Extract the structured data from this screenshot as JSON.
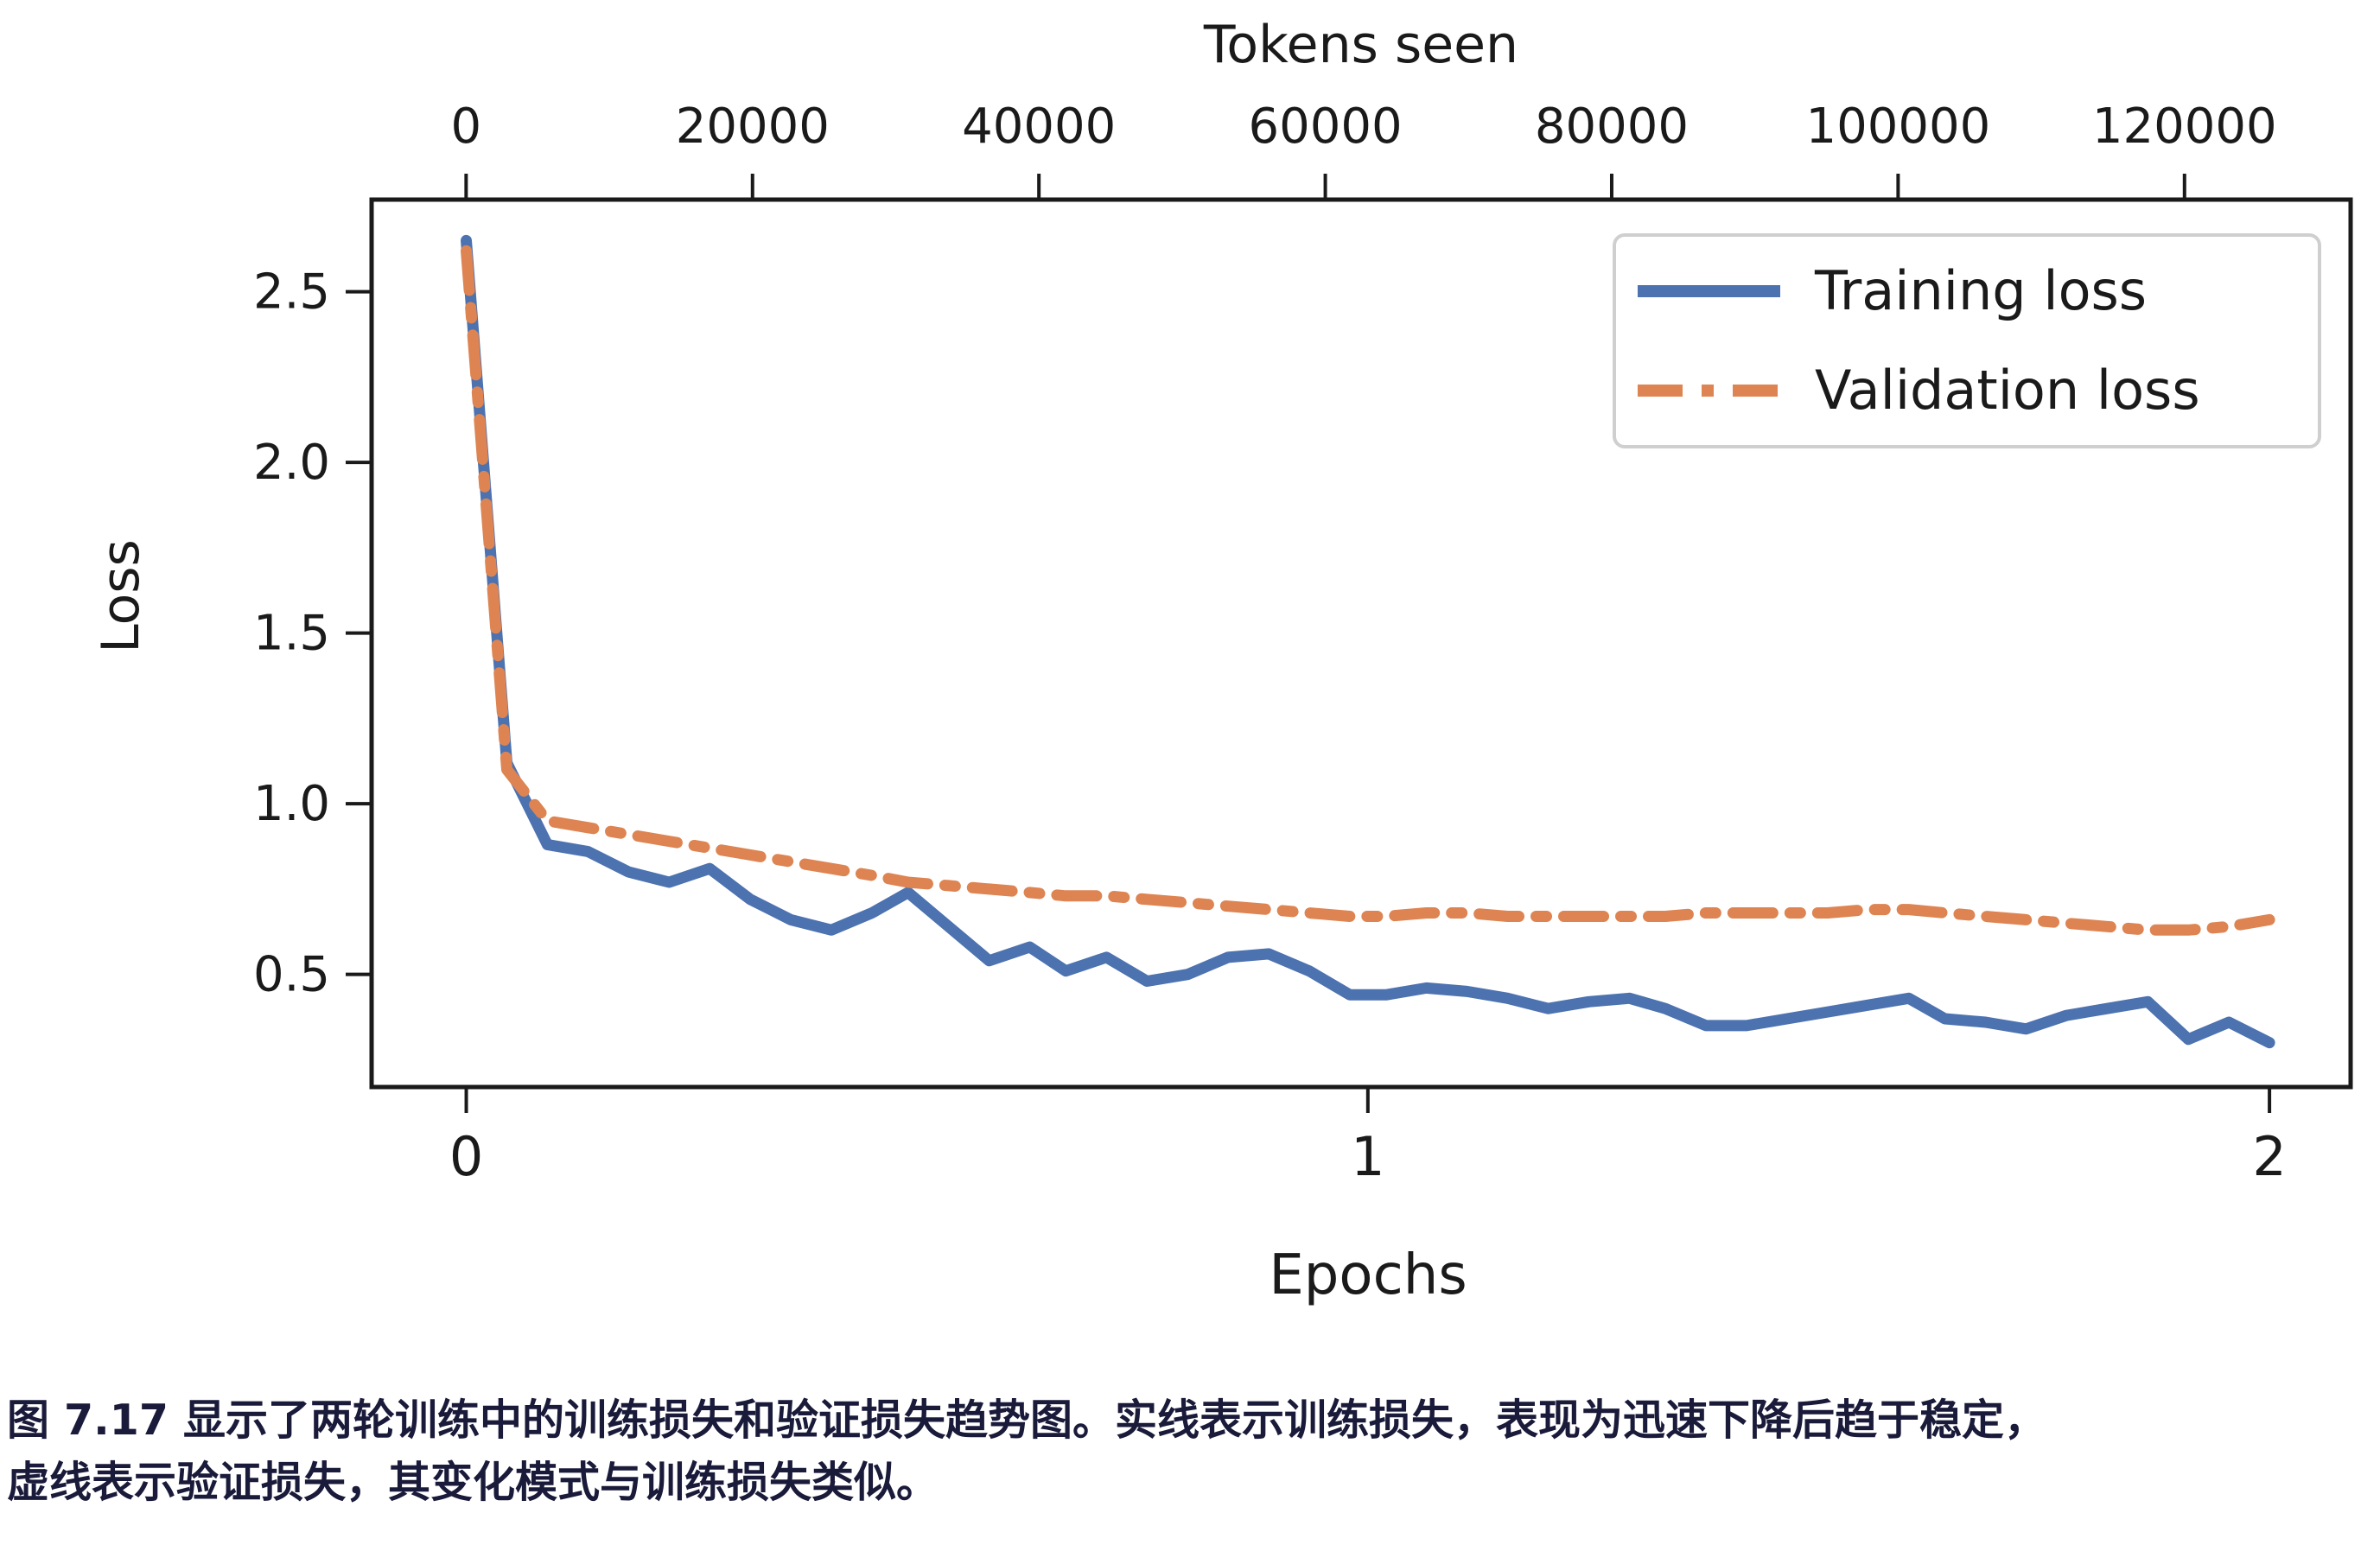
{
  "figure": {
    "caption": {
      "line1": "图 7.17 显示了两轮训练中的训练损失和验证损失趋势图。实线表示训练损失，表现为迅速下降后趋于稳定，",
      "line2": "虚线表示验证损失，其变化模式与训练损失类似。"
    }
  },
  "chart_data": {
    "type": "line",
    "title": "",
    "xlabel": "Epochs",
    "ylabel": "Loss",
    "top_axis_label": "Tokens seen",
    "grid": false,
    "legend_position": "upper right",
    "colors": {
      "training": "#4c72b0",
      "validation": "#dd8452",
      "spine": "#1a1a1a",
      "legend_border": "#cfcfcf"
    },
    "x_axis_bottom": {
      "label": "Epochs",
      "tick_values": [
        0,
        1,
        2
      ],
      "tick_labels": [
        "0",
        "1",
        "2"
      ],
      "min": -0.105,
      "max": 2.09
    },
    "x_axis_top": {
      "label": "Tokens seen",
      "tick_values": [
        0,
        20000,
        40000,
        60000,
        80000,
        100000,
        120000
      ],
      "tick_labels": [
        "0",
        "20000",
        "40000",
        "60000",
        "80000",
        "100000",
        "120000"
      ],
      "min": -6600,
      "max": 131600
    },
    "y_axis": {
      "label": "Loss",
      "tick_values": [
        2.5,
        2.0,
        1.5,
        1.0,
        0.5
      ],
      "tick_labels": [
        "2.5",
        "2.0",
        "1.5",
        "1.0",
        "0.5"
      ],
      "min": 0.17,
      "max": 2.77
    },
    "x_epochs": [
      0.0,
      0.045,
      0.09,
      0.135,
      0.18,
      0.225,
      0.27,
      0.315,
      0.36,
      0.405,
      0.45,
      0.49,
      0.535,
      0.58,
      0.625,
      0.665,
      0.71,
      0.755,
      0.8,
      0.845,
      0.89,
      0.935,
      0.98,
      1.02,
      1.065,
      1.11,
      1.155,
      1.2,
      1.245,
      1.29,
      1.33,
      1.375,
      1.42,
      1.465,
      1.51,
      1.555,
      1.6,
      1.64,
      1.685,
      1.73,
      1.775,
      1.82,
      1.865,
      1.91,
      1.955,
      2.0
    ],
    "series": [
      {
        "name": "Training loss",
        "style": "solid",
        "color": "#4c72b0",
        "values": [
          2.65,
          1.12,
          0.88,
          0.86,
          0.8,
          0.77,
          0.81,
          0.72,
          0.66,
          0.63,
          0.68,
          0.74,
          0.64,
          0.54,
          0.58,
          0.51,
          0.55,
          0.48,
          0.5,
          0.55,
          0.56,
          0.51,
          0.44,
          0.44,
          0.46,
          0.45,
          0.43,
          0.4,
          0.42,
          0.43,
          0.4,
          0.35,
          0.35,
          0.37,
          0.39,
          0.41,
          0.43,
          0.37,
          0.36,
          0.34,
          0.38,
          0.4,
          0.42,
          0.31,
          0.36,
          0.3
        ]
      },
      {
        "name": "Validation loss",
        "style": "dashdot",
        "color": "#dd8452",
        "values": [
          2.62,
          1.1,
          0.95,
          0.93,
          0.91,
          0.89,
          0.87,
          0.85,
          0.83,
          0.81,
          0.79,
          0.77,
          0.76,
          0.75,
          0.74,
          0.73,
          0.73,
          0.72,
          0.71,
          0.7,
          0.69,
          0.68,
          0.67,
          0.67,
          0.68,
          0.68,
          0.67,
          0.67,
          0.67,
          0.67,
          0.67,
          0.68,
          0.68,
          0.68,
          0.68,
          0.69,
          0.69,
          0.68,
          0.67,
          0.66,
          0.65,
          0.64,
          0.63,
          0.63,
          0.64,
          0.66
        ]
      }
    ],
    "legend_entries": [
      "Training loss",
      "Validation loss"
    ]
  }
}
